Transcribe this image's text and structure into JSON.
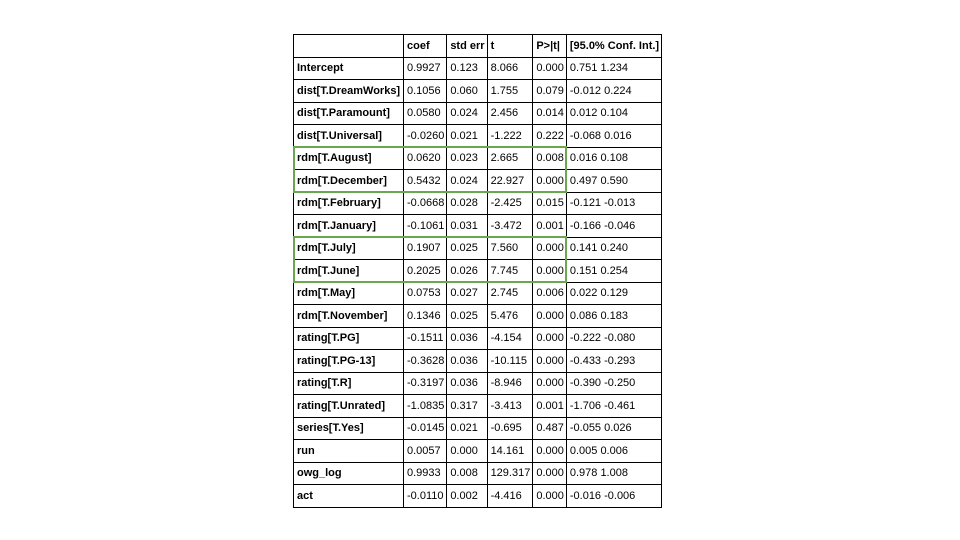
{
  "table": {
    "headers": [
      "",
      "coef",
      "std err",
      "t",
      "P>|t|",
      "[95.0% Conf. Int.]"
    ],
    "rows": [
      {
        "label": "Intercept",
        "coef": "0.9927",
        "std_err": "0.123",
        "t": "8.066",
        "p": "0.000",
        "ci": "0.751 1.234",
        "highlighted": false
      },
      {
        "label": "dist[T.DreamWorks]",
        "coef": "0.1056",
        "std_err": "0.060",
        "t": "1.755",
        "p": "0.079",
        "ci": "-0.012 0.224",
        "highlighted": false
      },
      {
        "label": "dist[T.Paramount]",
        "coef": "0.0580",
        "std_err": "0.024",
        "t": "2.456",
        "p": "0.014",
        "ci": "0.012 0.104",
        "highlighted": false
      },
      {
        "label": "dist[T.Universal]",
        "coef": "-0.0260",
        "std_err": "0.021",
        "t": "-1.222",
        "p": "0.222",
        "ci": "-0.068 0.016",
        "highlighted": false
      },
      {
        "label": "rdm[T.August]",
        "coef": "0.0620",
        "std_err": "0.023",
        "t": "2.665",
        "p": "0.008",
        "ci": "0.016 0.108",
        "highlighted": true
      },
      {
        "label": "rdm[T.December]",
        "coef": "0.5432",
        "std_err": "0.024",
        "t": "22.927",
        "p": "0.000",
        "ci": "0.497 0.590",
        "highlighted": true
      },
      {
        "label": "rdm[T.February]",
        "coef": "-0.0668",
        "std_err": "0.028",
        "t": "-2.425",
        "p": "0.015",
        "ci": "-0.121 -0.013",
        "highlighted": false
      },
      {
        "label": "rdm[T.January]",
        "coef": "-0.1061",
        "std_err": "0.031",
        "t": "-3.472",
        "p": "0.001",
        "ci": "-0.166 -0.046",
        "highlighted": false
      },
      {
        "label": "rdm[T.July]",
        "coef": "0.1907",
        "std_err": "0.025",
        "t": "7.560",
        "p": "0.000",
        "ci": "0.141 0.240",
        "highlighted": true
      },
      {
        "label": "rdm[T.June]",
        "coef": "0.2025",
        "std_err": "0.026",
        "t": "7.745",
        "p": "0.000",
        "ci": "0.151 0.254",
        "highlighted": true
      },
      {
        "label": "rdm[T.May]",
        "coef": "0.0753",
        "std_err": "0.027",
        "t": "2.745",
        "p": "0.006",
        "ci": "0.022 0.129",
        "highlighted": false
      },
      {
        "label": "rdm[T.November]",
        "coef": "0.1346",
        "std_err": "0.025",
        "t": "5.476",
        "p": "0.000",
        "ci": "0.086 0.183",
        "highlighted": false
      },
      {
        "label": "rating[T.PG]",
        "coef": "-0.1511",
        "std_err": "0.036",
        "t": "-4.154",
        "p": "0.000",
        "ci": "-0.222 -0.080",
        "highlighted": false
      },
      {
        "label": "rating[T.PG-13]",
        "coef": "-0.3628",
        "std_err": "0.036",
        "t": "-10.115",
        "p": "0.000",
        "ci": "-0.433 -0.293",
        "highlighted": false
      },
      {
        "label": "rating[T.R]",
        "coef": "-0.3197",
        "std_err": "0.036",
        "t": "-8.946",
        "p": "0.000",
        "ci": "-0.390 -0.250",
        "highlighted": false
      },
      {
        "label": "rating[T.Unrated]",
        "coef": "-1.0835",
        "std_err": "0.317",
        "t": "-3.413",
        "p": "0.001",
        "ci": "-1.706 -0.461",
        "highlighted": false
      },
      {
        "label": "series[T.Yes]",
        "coef": "-0.0145",
        "std_err": "0.021",
        "t": "-0.695",
        "p": "0.487",
        "ci": "-0.055 0.026",
        "highlighted": false
      },
      {
        "label": "run",
        "coef": "0.0057",
        "std_err": "0.000",
        "t": "14.161",
        "p": "0.000",
        "ci": "0.005 0.006",
        "highlighted": false
      },
      {
        "label": "owg_log",
        "coef": "0.9933",
        "std_err": "0.008",
        "t": "129.317",
        "p": "0.000",
        "ci": "0.978 1.008",
        "highlighted": false
      },
      {
        "label": "act",
        "coef": "-0.0110",
        "std_err": "0.002",
        "t": "-4.416",
        "p": "0.000",
        "ci": "-0.016 -0.006",
        "highlighted": false
      }
    ],
    "highlight_groups": [
      {
        "rows": [
          "rdm[T.August]",
          "rdm[T.December]"
        ]
      },
      {
        "rows": [
          "rdm[T.July]",
          "rdm[T.June]"
        ]
      }
    ]
  },
  "colors": {
    "highlight": "#6aa84f",
    "border": "#000000",
    "background": "#ffffff"
  }
}
